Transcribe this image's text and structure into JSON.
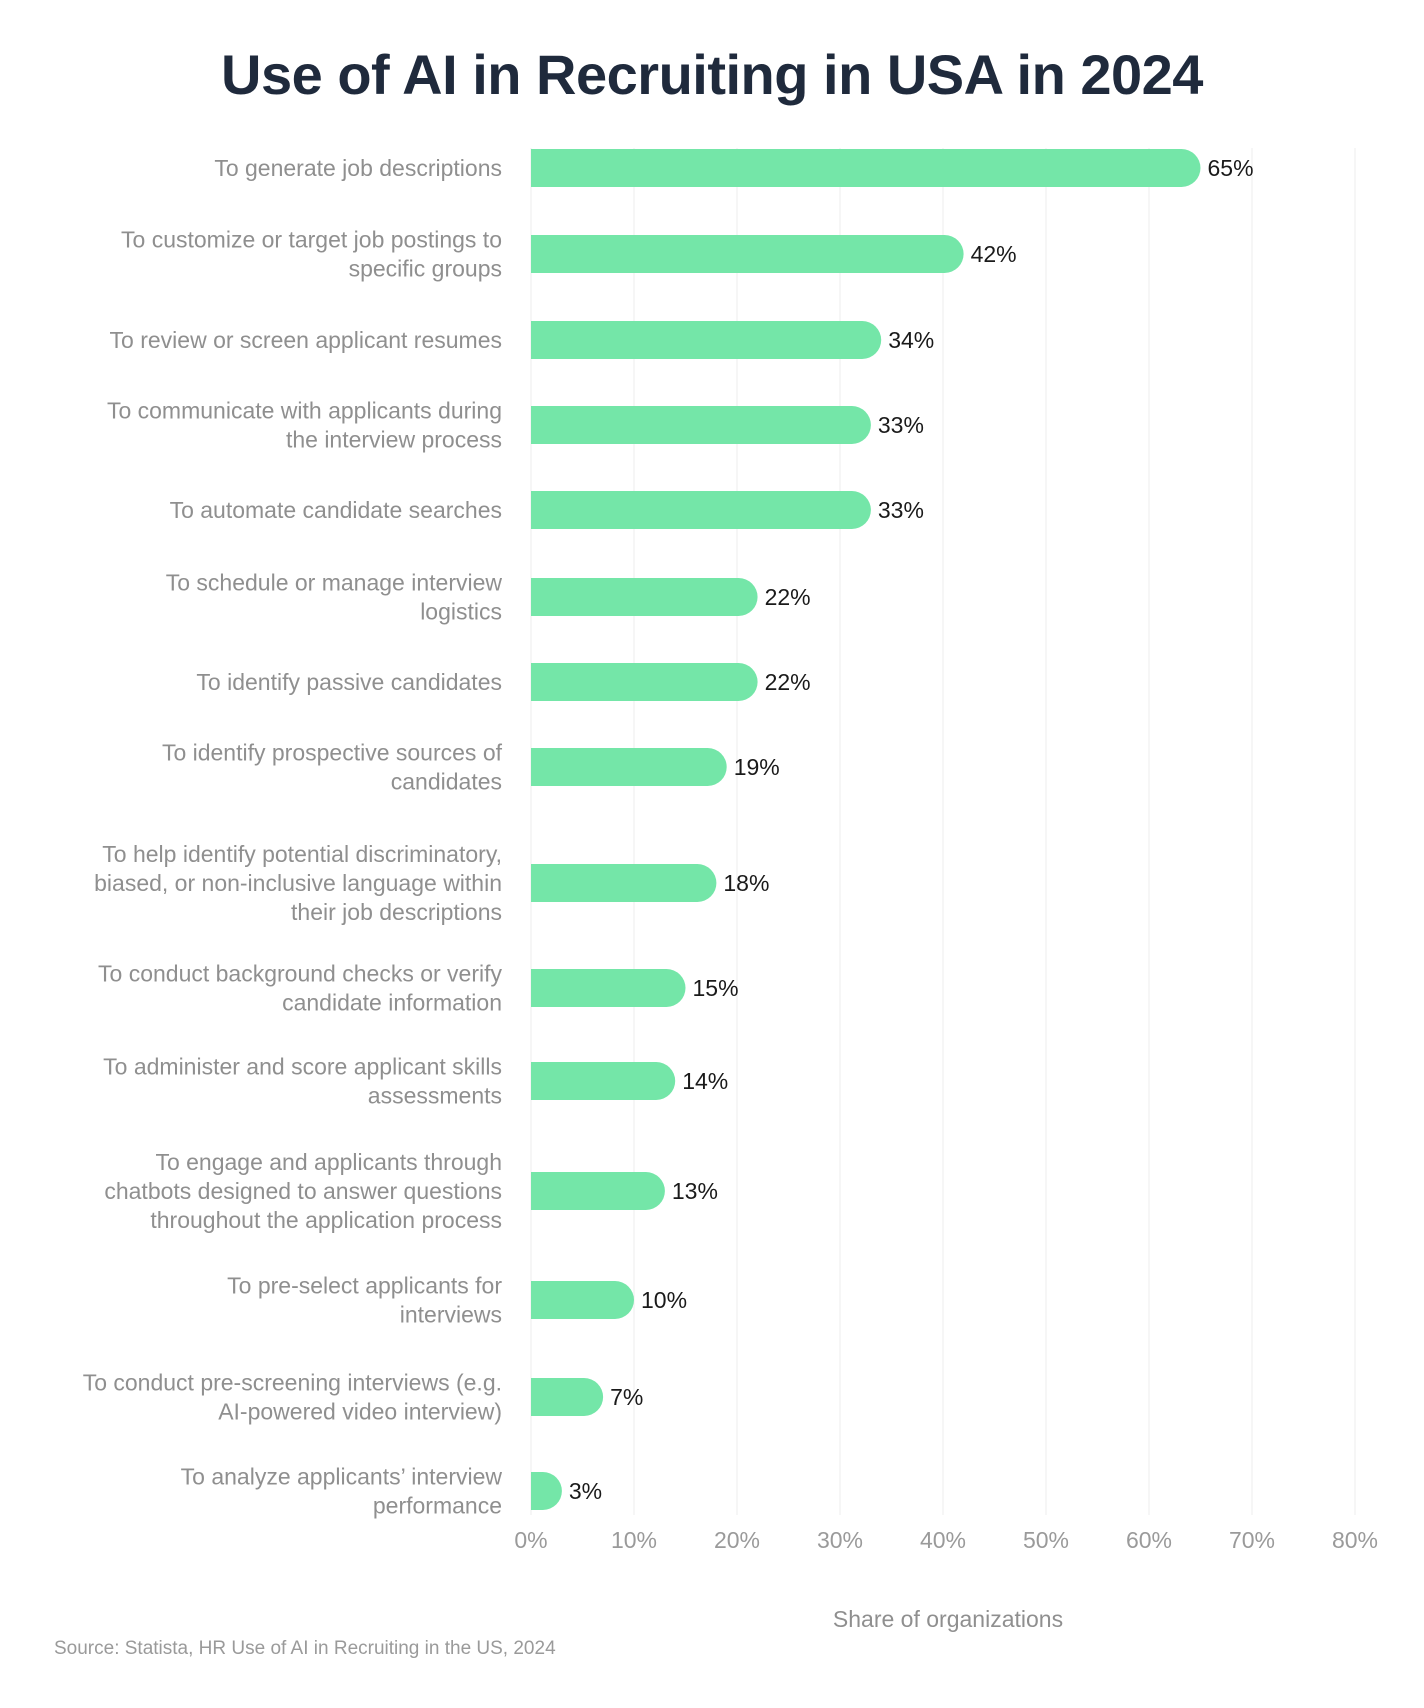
{
  "title": "Use of AI in Recruiting in USA in 2024",
  "source": "Source: Statista, HR Use of AI in Recruiting in the US, 2024",
  "colors": {
    "bar": "#74e6a8",
    "grid": "#eeeeee",
    "title": "#1f2a3c"
  },
  "chart_data": {
    "type": "bar",
    "orientation": "horizontal",
    "categories": [
      [
        "To generate job descriptions"
      ],
      [
        "To customize or target job postings to",
        "specific groups"
      ],
      [
        "To review or screen applicant resumes"
      ],
      [
        "To communicate with applicants during",
        "the interview process"
      ],
      [
        "To automate candidate searches"
      ],
      [
        "To schedule or manage interview",
        "logistics"
      ],
      [
        "To identify passive candidates"
      ],
      [
        "To identify prospective sources of",
        "candidates"
      ],
      [
        "To help identify potential discriminatory,",
        "biased, or non-inclusive language within",
        "their job descriptions"
      ],
      [
        "To conduct background checks or verify",
        "candidate information"
      ],
      [
        "To administer and score applicant skills",
        "assessments"
      ],
      [
        "To engage and applicants through",
        "chatbots designed to answer questions",
        "throughout the application process"
      ],
      [
        "To pre-select applicants for",
        "interviews"
      ],
      [
        "To conduct pre-screening interviews (e.g.",
        "AI-powered video interview)"
      ],
      [
        "To analyze applicants’ interview",
        "performance"
      ]
    ],
    "values": [
      65,
      42,
      34,
      33,
      33,
      22,
      22,
      19,
      18,
      15,
      14,
      13,
      10,
      7,
      3
    ],
    "value_labels": [
      "65%",
      "42%",
      "34%",
      "33%",
      "33%",
      "22%",
      "22%",
      "19%",
      "18%",
      "15%",
      "14%",
      "13%",
      "10%",
      "7%",
      "3%"
    ],
    "xlabel": "Share of organizations",
    "xlim": [
      0,
      80
    ],
    "xticks": [
      0,
      10,
      20,
      30,
      40,
      50,
      60,
      70,
      80
    ],
    "xtick_labels": [
      "0%",
      "10%",
      "20%",
      "30%",
      "40%",
      "50%",
      "60%",
      "70%",
      "80%"
    ],
    "grid": true,
    "legend": "none"
  }
}
